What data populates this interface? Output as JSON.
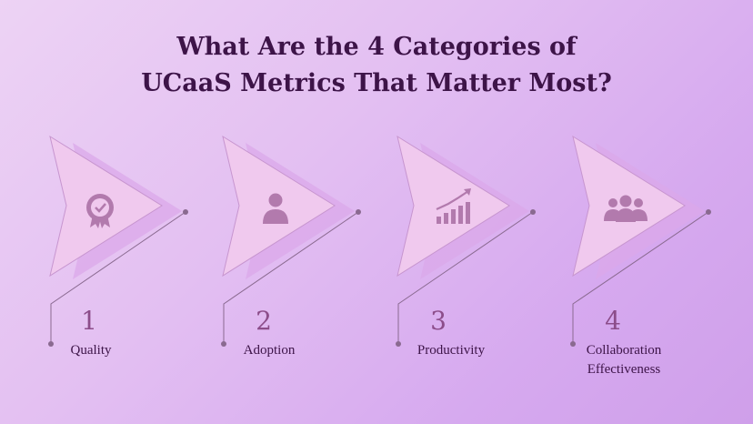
{
  "title": {
    "line1": "What Are the 4 Categories of",
    "line2": "UCaaS Metrics That Matter Most?"
  },
  "colors": {
    "title": "#3d1448",
    "number": "#8c4d8a",
    "arrow_fill": "#f0c9ee",
    "arrow_shadow": "#dba8ea",
    "icon": "#b27aad",
    "connector": "#8a6a90"
  },
  "categories": [
    {
      "number": "1",
      "label": "Quality",
      "icon": "badge-check-icon"
    },
    {
      "number": "2",
      "label": "Adoption",
      "icon": "user-icon"
    },
    {
      "number": "3",
      "label": "Productivity",
      "icon": "growth-chart-icon"
    },
    {
      "number": "4",
      "label": "Collaboration Effectiveness",
      "label_lines": [
        "Collaboration",
        "Effectiveness"
      ],
      "icon": "team-icon"
    }
  ]
}
